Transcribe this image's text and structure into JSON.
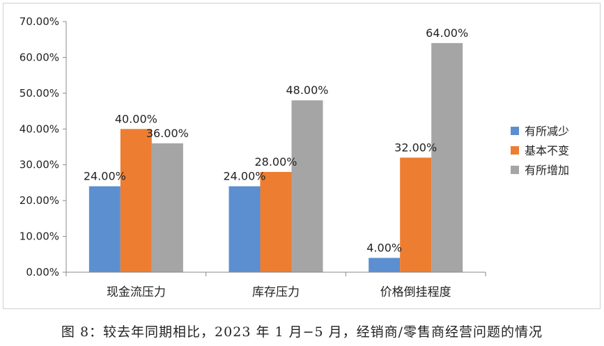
{
  "chart_data": {
    "type": "bar",
    "title": "",
    "xlabel": "",
    "ylabel": "",
    "categories": [
      "现金流压力",
      "库存压力",
      "价格倒挂程度"
    ],
    "series": [
      {
        "name": "有所减少",
        "values": [
          24.0,
          24.0,
          4.0
        ],
        "labels": [
          "24.00%",
          "24.00%",
          "4.00%"
        ],
        "color": "#5b8fd0"
      },
      {
        "name": "基本不变",
        "values": [
          40.0,
          28.0,
          32.0
        ],
        "labels": [
          "40.00%",
          "28.00%",
          "32.00%"
        ],
        "color": "#ed7d31"
      },
      {
        "name": "有所增加",
        "values": [
          36.0,
          48.0,
          64.0
        ],
        "labels": [
          "36.00%",
          "48.00%",
          "64.00%"
        ],
        "color": "#a5a5a5"
      }
    ],
    "ylim": [
      0,
      70
    ],
    "yticks": [
      "0.00%",
      "10.00%",
      "20.00%",
      "30.00%",
      "40.00%",
      "50.00%",
      "60.00%",
      "70.00%"
    ],
    "grid": false,
    "legend": "right"
  },
  "caption": "图 8：较去年同期相比，2023 年 1 月−5 月，经销商/零售商经营问题的情况"
}
